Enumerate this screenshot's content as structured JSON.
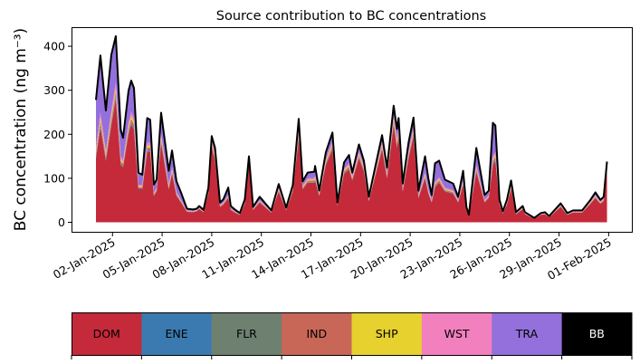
{
  "chart_data": {
    "type": "area",
    "stacked": true,
    "title": "Source contribution to BC concentrations",
    "ylabel": "BC concentration (ng m⁻³)",
    "xlabel": "",
    "ylim": [
      -20,
      445
    ],
    "yticks": [
      0,
      100,
      200,
      300,
      400
    ],
    "x_unit": "days since 01-Jan-2025 00:00",
    "xlim_days": [
      -1.5,
      32.4
    ],
    "xticks": [
      {
        "day": 1,
        "label": "02-Jan-2025"
      },
      {
        "day": 4,
        "label": "05-Jan-2025"
      },
      {
        "day": 7,
        "label": "08-Jan-2025"
      },
      {
        "day": 10,
        "label": "11-Jan-2025"
      },
      {
        "day": 13,
        "label": "14-Jan-2025"
      },
      {
        "day": 16,
        "label": "17-Jan-2025"
      },
      {
        "day": 19,
        "label": "20-Jan-2025"
      },
      {
        "day": 22,
        "label": "23-Jan-2025"
      },
      {
        "day": 25,
        "label": "26-Jan-2025"
      },
      {
        "day": 28,
        "label": "29-Jan-2025"
      },
      {
        "day": 31,
        "label": "01-Feb-2025"
      }
    ],
    "x": [
      0,
      0.27,
      0.6,
      0.93,
      1.2,
      1.5,
      1.64,
      1.97,
      2.13,
      2.3,
      2.57,
      2.8,
      3.1,
      3.28,
      3.5,
      3.67,
      3.94,
      4.2,
      4.4,
      4.6,
      4.87,
      5.14,
      5.5,
      5.86,
      6.1,
      6.24,
      6.5,
      6.8,
      7.0,
      7.2,
      7.5,
      7.7,
      8.0,
      8.15,
      8.4,
      8.7,
      9.0,
      9.25,
      9.5,
      9.9,
      10.6,
      11.05,
      11.5,
      11.9,
      12.26,
      12.5,
      12.8,
      13.2,
      13.25,
      13.5,
      13.9,
      14.3,
      14.6,
      15.0,
      15.3,
      15.5,
      15.9,
      16.2,
      16.5,
      17.3,
      17.6,
      18.0,
      18.2,
      18.3,
      18.55,
      18.9,
      19.2,
      19.5,
      19.9,
      20.1,
      20.3,
      20.5,
      20.75,
      21.1,
      21.6,
      21.9,
      22.2,
      22.4,
      22.55,
      23.0,
      23.5,
      23.75,
      24.0,
      24.15,
      24.4,
      24.6,
      24.85,
      25.1,
      25.4,
      25.8,
      25.94,
      26.5,
      26.9,
      27.15,
      27.4,
      28.1,
      28.5,
      28.85,
      29.4,
      29.9,
      30.2,
      30.5,
      30.7,
      30.9
    ],
    "total": [
      278,
      379,
      254,
      381,
      423,
      210,
      192,
      299,
      322,
      305,
      113,
      108,
      237,
      233,
      86,
      97,
      249,
      175,
      117,
      163,
      93,
      68,
      31,
      29,
      31,
      37,
      28,
      79,
      196,
      169,
      45,
      52,
      79,
      37,
      29,
      21,
      52,
      150,
      35,
      58,
      27,
      87,
      33,
      84,
      235,
      93,
      113,
      115,
      128,
      72,
      159,
      204,
      45,
      136,
      153,
      113,
      177,
      140,
      58,
      198,
      124,
      265,
      212,
      237,
      88,
      181,
      238,
      72,
      150,
      99,
      62,
      134,
      140,
      97,
      88,
      58,
      117,
      35,
      17,
      169,
      62,
      72,
      226,
      220,
      51,
      25,
      51,
      95,
      23,
      37,
      23,
      10,
      21,
      23,
      14,
      43,
      21,
      27,
      27,
      51,
      68,
      51,
      58,
      138
    ],
    "series": [
      {
        "name": "DOM",
        "color": "#c52a3a",
        "values": [
          145,
          215,
          140,
          220,
          280,
          130,
          125,
          200,
          222,
          210,
          75,
          75,
          160,
          160,
          60,
          70,
          180,
          120,
          75,
          110,
          60,
          45,
          24,
          23,
          25,
          30,
          23,
          65,
          170,
          140,
          35,
          40,
          55,
          28,
          22,
          17,
          42,
          130,
          28,
          45,
          22,
          70,
          27,
          70,
          190,
          75,
          90,
          90,
          95,
          60,
          130,
          165,
          38,
          110,
          120,
          95,
          145,
          115,
          48,
          165,
          100,
          220,
          170,
          195,
          70,
          145,
          195,
          55,
          100,
          65,
          45,
          80,
          90,
          70,
          65,
          45,
          85,
          28,
          14,
          115,
          45,
          55,
          130,
          140,
          40,
          20,
          40,
          75,
          18,
          30,
          18,
          8,
          17,
          18,
          11,
          35,
          17,
          22,
          22,
          42,
          55,
          42,
          48,
          115
        ]
      },
      {
        "name": "ENE",
        "color": "#3a7ab0",
        "share_of_total": 0.01
      },
      {
        "name": "FLR",
        "color": "#6e8070",
        "share_of_total": 0.01
      },
      {
        "name": "IND",
        "color": "#c86657",
        "share_of_total": 0.02
      },
      {
        "name": "SHP",
        "color": "#e6d12e",
        "share_of_total": 0.02
      },
      {
        "name": "WST",
        "color": "#f280bf",
        "share_of_total": 0.03
      },
      {
        "name": "TRA",
        "color": "#9370db",
        "rule": "remainder to total"
      }
    ],
    "total_line_color": "#000000",
    "legend": {
      "placement": "bottom colorbar",
      "entries": [
        {
          "label": "DOM",
          "color": "#c52a3a",
          "text_color": "#000000"
        },
        {
          "label": "ENE",
          "color": "#3a7ab0",
          "text_color": "#000000"
        },
        {
          "label": "FLR",
          "color": "#6e8070",
          "text_color": "#000000"
        },
        {
          "label": "IND",
          "color": "#c86657",
          "text_color": "#000000"
        },
        {
          "label": "SHP",
          "color": "#e6d12e",
          "text_color": "#000000"
        },
        {
          "label": "WST",
          "color": "#f280bf",
          "text_color": "#000000"
        },
        {
          "label": "TRA",
          "color": "#9370db",
          "text_color": "#000000"
        },
        {
          "label": "BB",
          "color": "#000000",
          "text_color": "#ffffff"
        }
      ]
    }
  }
}
